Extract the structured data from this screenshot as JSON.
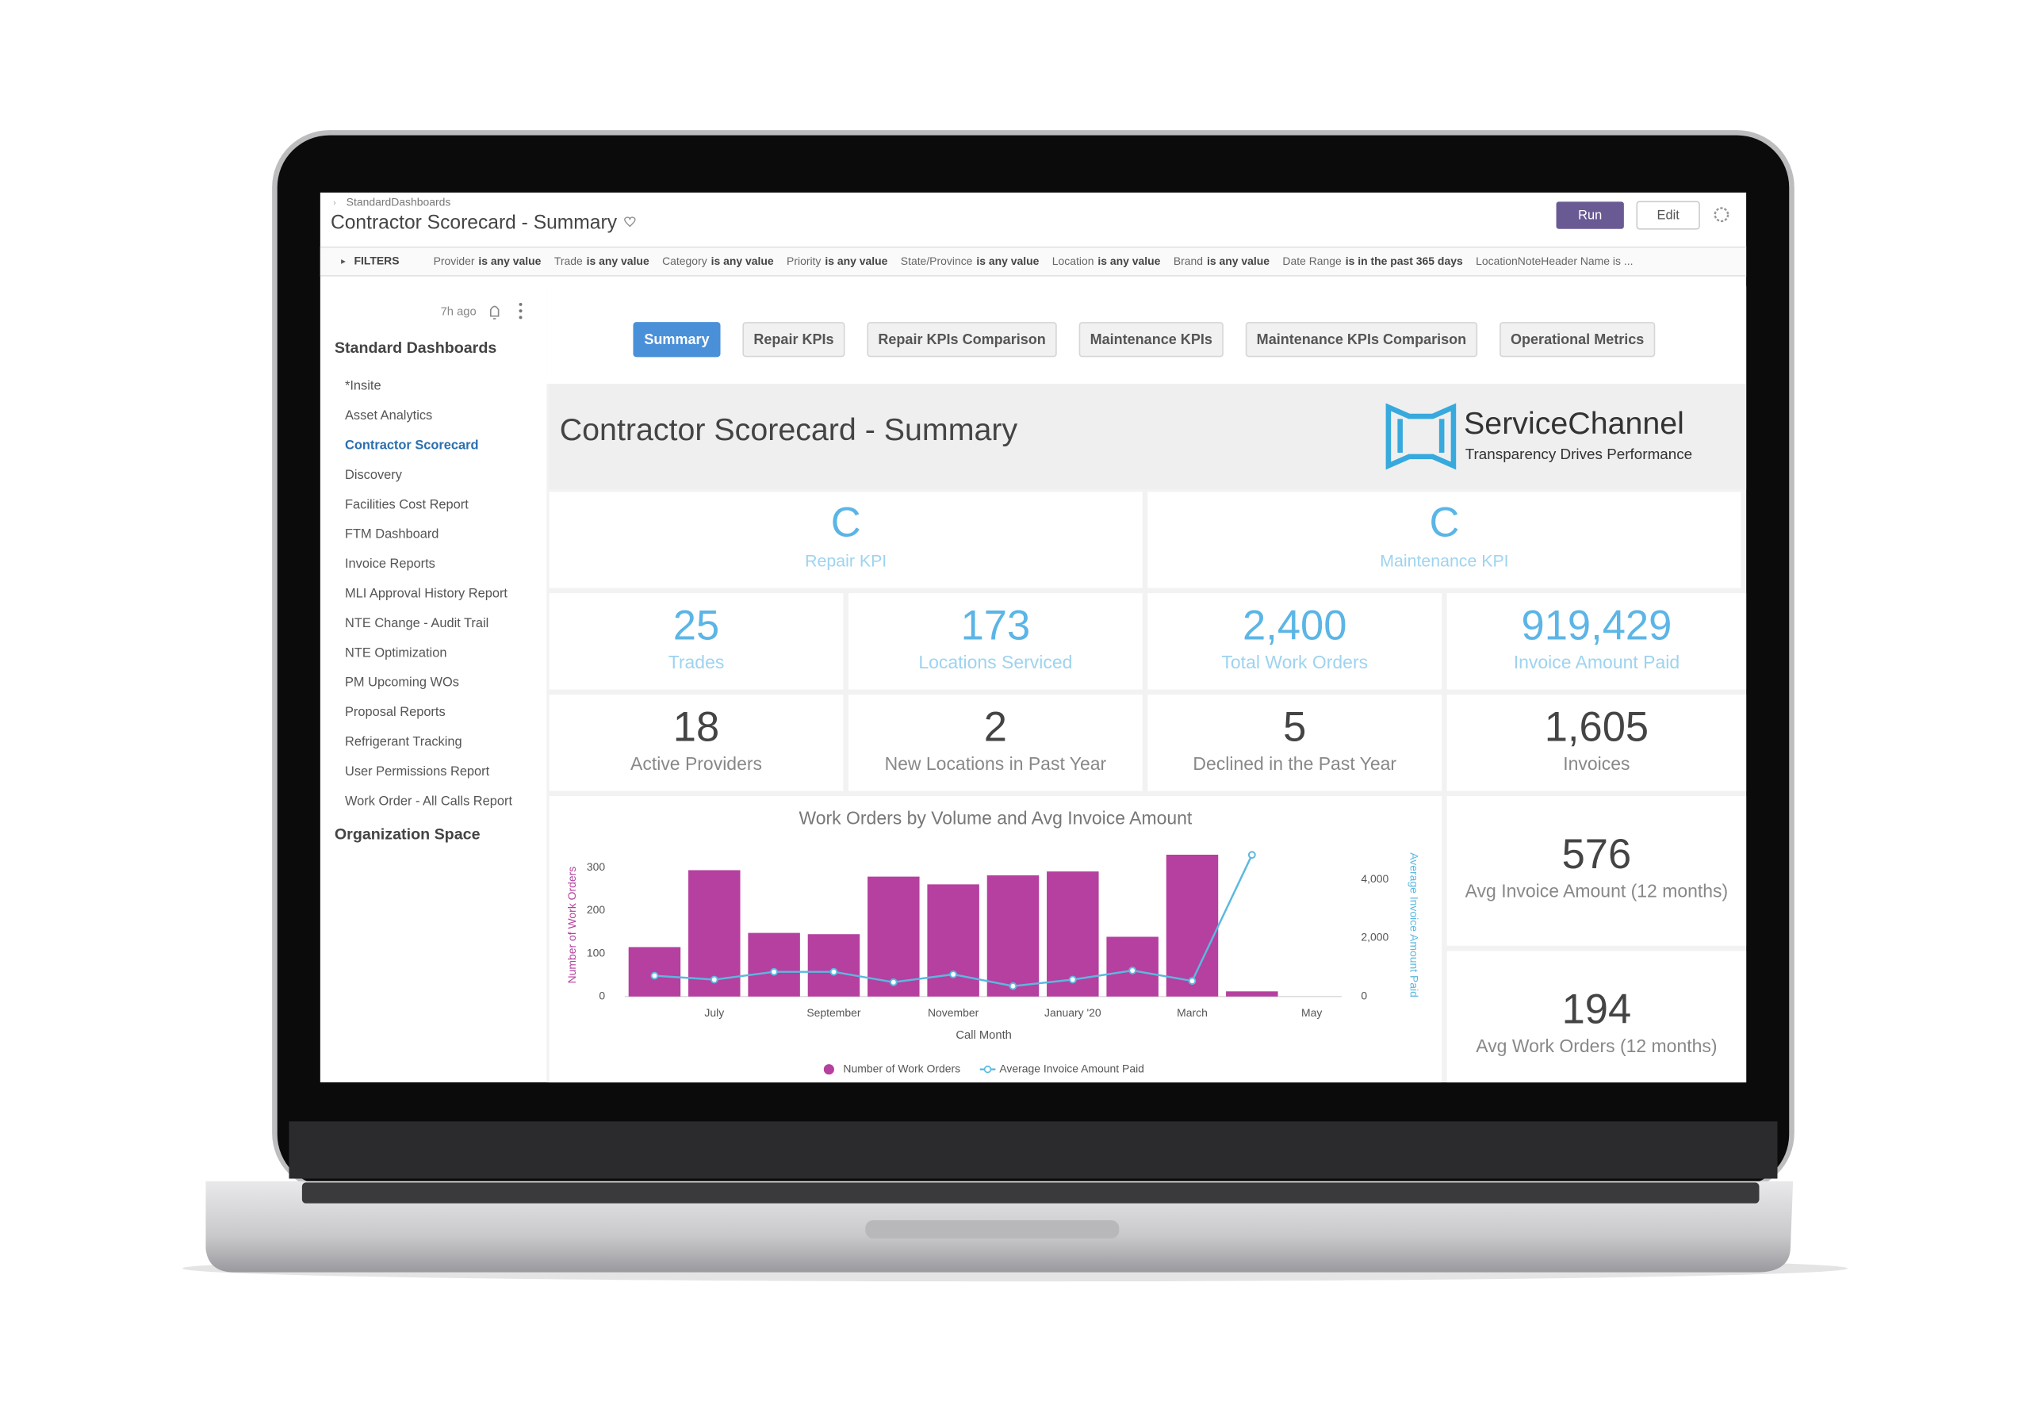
{
  "breadcrumb": "StandardDashboards",
  "header": {
    "title": "Contractor Scorecard - Summary",
    "buttons": [
      "Run",
      "Edit"
    ]
  },
  "filters": {
    "label": "FILTERS",
    "items": [
      {
        "name": "Provider",
        "condition": "is any value"
      },
      {
        "name": "Trade",
        "condition": "is any value"
      },
      {
        "name": "Category",
        "condition": "is any value"
      },
      {
        "name": "Priority",
        "condition": "is any value"
      },
      {
        "name": "State/Province",
        "condition": "is any value"
      },
      {
        "name": "Location",
        "condition": "is any value"
      },
      {
        "name": "Brand",
        "condition": "is any value"
      },
      {
        "name": "Date Range",
        "condition": "is in the past 365 days"
      },
      {
        "name": "LocationNoteHeader Name is ..."
      }
    ]
  },
  "sidebar": {
    "updated": "7h ago",
    "sections": [
      {
        "title": "Standard Dashboards",
        "active_index": 2,
        "items": [
          "*Insite",
          "Asset Analytics",
          "Contractor Scorecard",
          "Discovery",
          "Facilities Cost Report",
          "FTM Dashboard",
          "Invoice Reports",
          "MLI Approval History Report",
          "NTE Change - Audit Trail",
          "NTE Optimization",
          "PM Upcoming WOs",
          "Proposal Reports",
          "Refrigerant Tracking",
          "User Permissions Report",
          "Work Order - All Calls Report"
        ]
      },
      {
        "title": "Organization Space"
      }
    ]
  },
  "tabs": {
    "active_index": 0,
    "items": [
      "Summary",
      "Repair KPIs",
      "Repair KPIs Comparison",
      "Maintenance KPIs",
      "Maintenance KPIs Comparison",
      "Operational Metrics"
    ]
  },
  "banner": {
    "title": "Contractor Scorecard - Summary",
    "logo": {
      "name": "ServiceChannel",
      "tagline": "Transparency Drives Performance"
    }
  },
  "grades": {
    "color": "#5bb5e6",
    "items": [
      {
        "value": "C",
        "label": "Repair KPI"
      },
      {
        "value": "C",
        "label": "Maintenance KPI"
      }
    ]
  },
  "kpi_rows": [
    {
      "color": "#5bb5e6",
      "items": [
        {
          "value": 25,
          "label": "Trades"
        },
        {
          "value": 173,
          "label": "Locations Serviced"
        },
        {
          "value": 2400,
          "value_label": "2,400",
          "label": "Total Work Orders"
        },
        {
          "value": 919429,
          "value_label": "919,429",
          "label": "Invoice Amount Paid"
        }
      ]
    },
    {
      "color": "#444444",
      "items": [
        {
          "value": 18,
          "label": "Active Providers"
        },
        {
          "value": 2,
          "label": "New Locations in Past Year"
        },
        {
          "value": 5,
          "label": "Declined in the Past Year"
        },
        {
          "value": 1605,
          "value_label": "1,605",
          "label": "Invoices"
        }
      ]
    }
  ],
  "side_kpis": [
    {
      "value": 576,
      "label": "Avg Invoice Amount (12 months)"
    },
    {
      "value": 194,
      "label": "Avg Work Orders (12 months)"
    }
  ],
  "chart": {
    "type": "bar",
    "title": "Work Orders by Volume and Avg Invoice Amount",
    "xlabel": "Call Month",
    "ylabel": "Number of Work Orders",
    "y2label": "Average Invoice Amount Paid",
    "categories": [
      null,
      "July",
      null,
      "September",
      null,
      "November",
      null,
      "January '20",
      null,
      "March",
      null,
      "May"
    ],
    "series": [
      {
        "name": "Number of Work Orders",
        "type": "bar",
        "color": "#b5409f",
        "values": [
          115,
          294,
          148,
          145,
          279,
          261,
          282,
          291,
          139,
          330,
          12,
          null
        ]
      },
      {
        "name": "Average Invoice Amount Paid",
        "type": "line",
        "axis": "y2",
        "color": "#5bb8e0",
        "values": [
          711,
          578,
          844,
          844,
          489,
          756,
          356,
          578,
          889,
          533,
          4844,
          null
        ]
      }
    ],
    "ylim": [
      0,
      330
    ],
    "yticks": [
      0,
      100,
      200,
      300
    ],
    "y2lim": [
      0,
      4850
    ],
    "y2ticks": [
      0,
      {
        "value": 2000,
        "label": "2,000"
      },
      {
        "value": 4000,
        "label": "4,000"
      }
    ]
  }
}
